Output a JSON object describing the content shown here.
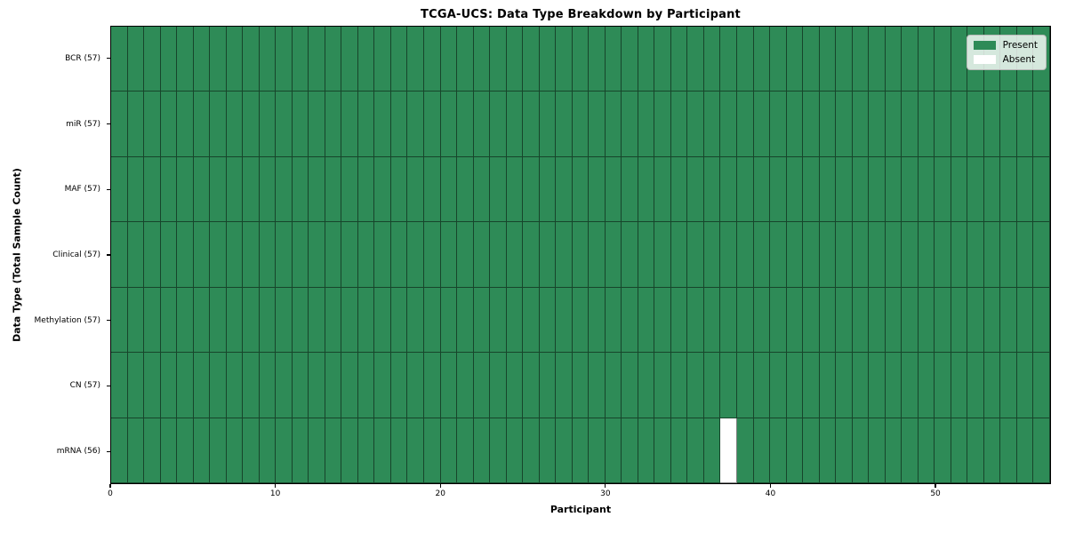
{
  "chart_data": {
    "type": "heatmap",
    "title": "TCGA-UCS: Data Type Breakdown by Participant",
    "xlabel": "Participant",
    "ylabel": "Data Type (Total Sample Count)",
    "n_participants": 57,
    "x_range": [
      0,
      57
    ],
    "x_ticks": [
      0,
      10,
      20,
      30,
      40,
      50
    ],
    "rows": [
      {
        "label": "BCR (57)",
        "data_type": "BCR",
        "present_count": 57,
        "absent_participants": []
      },
      {
        "label": "miR (57)",
        "data_type": "miR",
        "present_count": 57,
        "absent_participants": []
      },
      {
        "label": "MAF (57)",
        "data_type": "MAF",
        "present_count": 57,
        "absent_participants": []
      },
      {
        "label": "Clinical (57)",
        "data_type": "Clinical",
        "present_count": 57,
        "absent_participants": []
      },
      {
        "label": "Methylation (57)",
        "data_type": "Methylation",
        "present_count": 57,
        "absent_participants": []
      },
      {
        "label": "CN (57)",
        "data_type": "CN",
        "present_count": 57,
        "absent_participants": []
      },
      {
        "label": "mRNA (56)",
        "data_type": "mRNA",
        "present_count": 56,
        "absent_participants": [
          37
        ]
      }
    ],
    "legend": [
      {
        "label": "Present",
        "color": "#2e8b57"
      },
      {
        "label": "Absent",
        "color": "#ffffff"
      }
    ],
    "legend_position": "upper right",
    "colors": {
      "present": "#2e8b57",
      "absent": "#ffffff",
      "cell_edge": "rgba(0,0,0,0.5)",
      "frame": "#000000",
      "text": "#000000"
    }
  }
}
